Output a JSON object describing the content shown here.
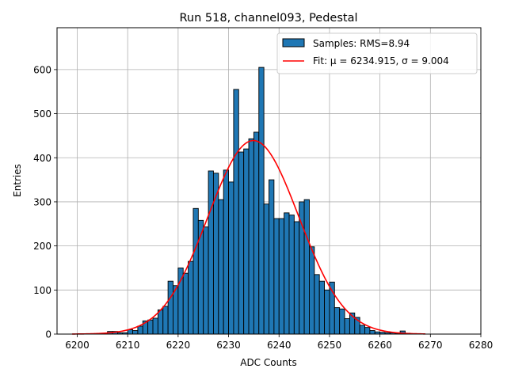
{
  "chart_data": {
    "type": "bar",
    "title": "Run 518, channel093, Pedestal",
    "xlabel": "ADC Counts",
    "ylabel": "Entries",
    "xlim": [
      6196,
      6280
    ],
    "ylim": [
      0,
      695
    ],
    "xticks": [
      "6200",
      "6210",
      "6220",
      "6230",
      "6240",
      "6250",
      "6260",
      "6270",
      "6280"
    ],
    "yticks": [
      "0",
      "100",
      "200",
      "300",
      "400",
      "500",
      "600"
    ],
    "grid": true,
    "legend_position": "top-right",
    "legend": {
      "hist_label": "Samples: RMS=8.94",
      "fit_label": "Fit: μ = 6234.915, σ = 9.004"
    },
    "bar_color": "#1f77b4",
    "fit_color": "#ff0000",
    "histogram": {
      "bin_width": 1,
      "bin_starts": [
        6206,
        6207,
        6208,
        6209,
        6210,
        6211,
        6212,
        6213,
        6214,
        6215,
        6216,
        6217,
        6218,
        6219,
        6220,
        6221,
        6222,
        6223,
        6224,
        6225,
        6226,
        6227,
        6228,
        6229,
        6230,
        6231,
        6232,
        6233,
        6234,
        6235,
        6236,
        6237,
        6238,
        6239,
        6240,
        6241,
        6242,
        6243,
        6244,
        6245,
        6246,
        6247,
        6248,
        6249,
        6250,
        6251,
        6252,
        6253,
        6254,
        6255,
        6256,
        6257,
        6258,
        6259,
        6260,
        6261,
        6262,
        6263,
        6264,
        6265
      ],
      "counts": [
        6,
        6,
        3,
        3,
        10,
        8,
        18,
        30,
        32,
        36,
        55,
        63,
        120,
        110,
        150,
        138,
        165,
        285,
        258,
        243,
        370,
        365,
        305,
        372,
        345,
        555,
        413,
        420,
        443,
        458,
        605,
        295,
        350,
        262,
        262,
        275,
        270,
        255,
        300,
        305,
        198,
        135,
        120,
        100,
        118,
        60,
        57,
        35,
        48,
        38,
        20,
        15,
        8,
        5,
        4,
        3,
        3,
        2,
        7,
        2
      ]
    },
    "fit": {
      "mu": 6234.915,
      "sigma": 9.004,
      "amplitude": 439,
      "x_range": [
        6199,
        6269
      ]
    }
  }
}
